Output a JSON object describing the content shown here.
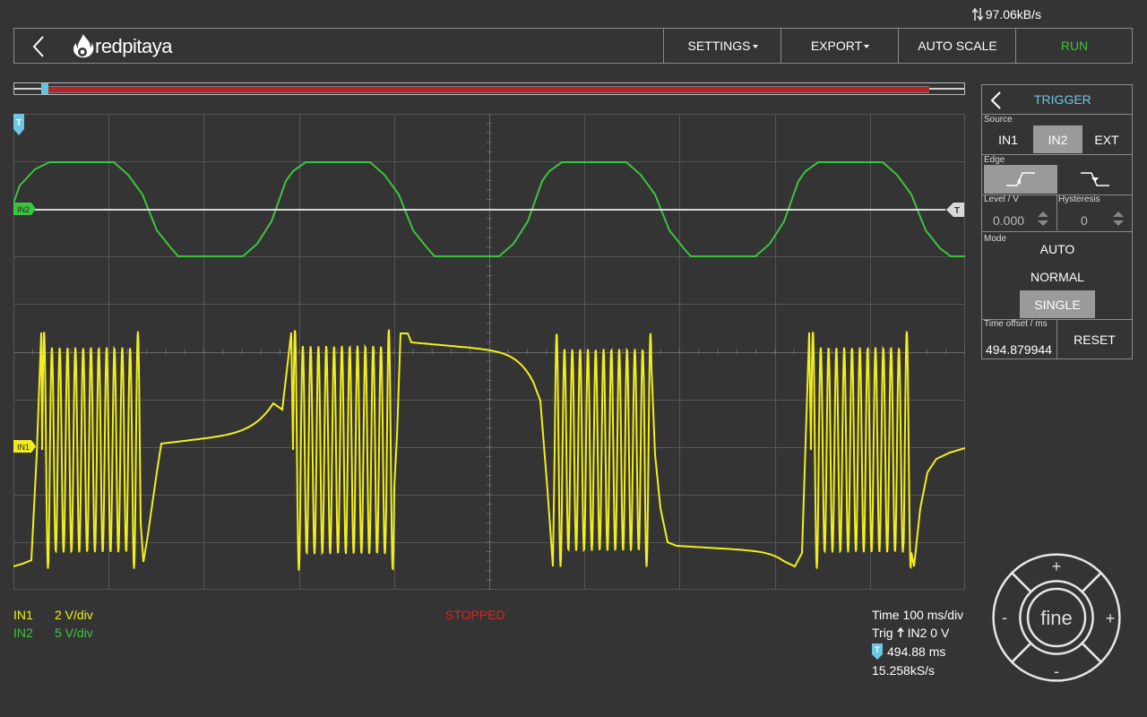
{
  "status": {
    "transfer_rate": "97.06kB/s"
  },
  "navbar": {
    "logo_text": "redpitaya",
    "settings_label": "SETTINGS",
    "export_label": "EXPORT",
    "autoscale_label": "AUTO SCALE",
    "run_label": "RUN",
    "run_color": "#3bc43e"
  },
  "plot": {
    "trigger_marker": "T",
    "in2_marker": "IN2",
    "in1_marker": "IN1",
    "trigger_level_marker": "T",
    "in1_color": "#f2ee1e",
    "in2_color": "#3bc43e",
    "trigger_color": "#6dc6e6"
  },
  "trigger": {
    "title": "TRIGGER",
    "source_label": "Source",
    "sources": [
      "IN1",
      "IN2",
      "EXT"
    ],
    "selected_source": "IN2",
    "edge_label": "Edge",
    "selected_edge": "rising",
    "level_label": "Level / V",
    "level_value": "0.000",
    "hysteresis_label": "Hysteresis",
    "hysteresis_value": "0",
    "mode_label": "Mode",
    "modes": [
      "AUTO",
      "NORMAL",
      "SINGLE"
    ],
    "selected_mode": "SINGLE",
    "time_offset_label": "Time offset / ms",
    "time_offset_value": "494.879944",
    "reset_label": "RESET"
  },
  "bottom": {
    "in1_name": "IN1",
    "in1_scale": "2 V/div",
    "in2_name": "IN2",
    "in2_scale": "5 V/div",
    "state": "STOPPED",
    "time_scale": "Time 100 ms/div",
    "trig_prefix": "Trig",
    "trig_info": "IN2 0 V",
    "trigger_time": "494.88 ms",
    "sample_rate": "15.258kS/s"
  },
  "jog": {
    "center_label": "fine",
    "up": "+",
    "down": "-",
    "left": "-",
    "right": "+"
  }
}
